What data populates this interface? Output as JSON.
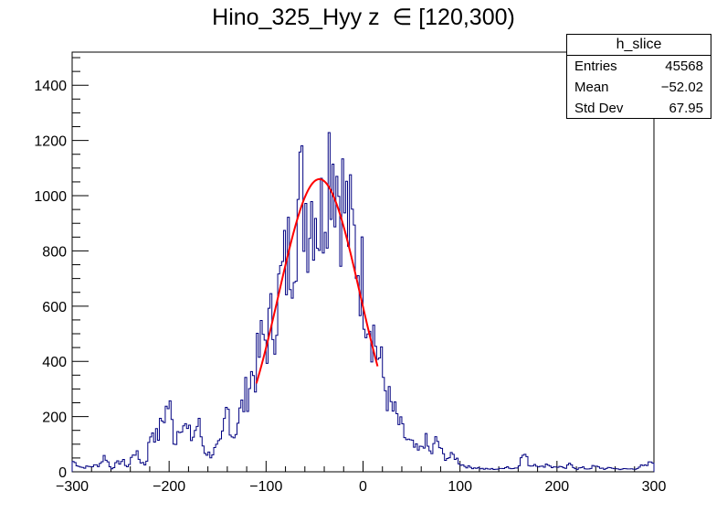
{
  "title": "Hino_325_Hyy z  ∈ [120,300)",
  "stats": {
    "name": "h_slice",
    "rows": [
      {
        "label": "Entries",
        "value": "45568"
      },
      {
        "label": "Mean",
        "value": "−52.02"
      },
      {
        "label": "Std Dev",
        "value": "67.95"
      }
    ]
  },
  "chart_data": {
    "type": "histogram",
    "x_range": [
      -300,
      300
    ],
    "y_range": [
      0,
      1520
    ],
    "bin_width": 2,
    "x_ticks": [
      -300,
      -200,
      -100,
      0,
      100,
      200,
      300
    ],
    "x_tick_labels": [
      "−300",
      "−200",
      "−100",
      "0",
      "100",
      "200",
      "300"
    ],
    "y_ticks": [
      0,
      200,
      400,
      600,
      800,
      1000,
      1200,
      1400
    ],
    "y_tick_labels": [
      "0",
      "200",
      "400",
      "600",
      "800",
      "1000",
      "1200",
      "1400"
    ],
    "histogram_color": "#000080",
    "fit_color": "#ff0000",
    "fit": {
      "function": "gaus",
      "amplitude": 1060,
      "mean": -45,
      "sigma": 42,
      "range": [
        -110,
        15
      ]
    },
    "bins": [
      [
        -300,
        40
      ],
      [
        -290,
        15
      ],
      [
        -280,
        20
      ],
      [
        -272,
        25
      ],
      [
        -266,
        60
      ],
      [
        -260,
        10
      ],
      [
        -254,
        30
      ],
      [
        -248,
        40
      ],
      [
        -242,
        15
      ],
      [
        -236,
        80
      ],
      [
        -230,
        40
      ],
      [
        -224,
        25
      ],
      [
        -218,
        160
      ],
      [
        -212,
        120
      ],
      [
        -206,
        200
      ],
      [
        -200,
        250
      ],
      [
        -194,
        100
      ],
      [
        -188,
        200
      ],
      [
        -182,
        150
      ],
      [
        -176,
        120
      ],
      [
        -170,
        180
      ],
      [
        -164,
        80
      ],
      [
        -158,
        60
      ],
      [
        -152,
        80
      ],
      [
        -146,
        100
      ],
      [
        -140,
        240
      ],
      [
        -134,
        120
      ],
      [
        -128,
        200
      ],
      [
        -122,
        260
      ],
      [
        -116,
        340
      ],
      [
        -110,
        380
      ],
      [
        -104,
        470
      ],
      [
        -98,
        500
      ],
      [
        -92,
        560
      ],
      [
        -86,
        660
      ],
      [
        -80,
        740
      ],
      [
        -74,
        820
      ],
      [
        -68,
        960
      ],
      [
        -62,
        1000
      ],
      [
        -56,
        950
      ],
      [
        -50,
        1020
      ],
      [
        -44,
        880
      ],
      [
        -38,
        1100
      ],
      [
        -32,
        1200
      ],
      [
        -26,
        1060
      ],
      [
        -20,
        980
      ],
      [
        -14,
        880
      ],
      [
        -8,
        820
      ],
      [
        -2,
        720
      ],
      [
        4,
        620
      ],
      [
        10,
        520
      ],
      [
        16,
        420
      ],
      [
        22,
        320
      ],
      [
        28,
        240
      ],
      [
        34,
        200
      ],
      [
        40,
        150
      ],
      [
        46,
        110
      ],
      [
        52,
        90
      ],
      [
        58,
        70
      ],
      [
        64,
        120
      ],
      [
        70,
        60
      ],
      [
        76,
        120
      ],
      [
        82,
        60
      ],
      [
        88,
        50
      ],
      [
        94,
        60
      ],
      [
        100,
        30
      ],
      [
        106,
        20
      ],
      [
        112,
        15
      ],
      [
        118,
        15
      ],
      [
        124,
        10
      ],
      [
        130,
        10
      ],
      [
        136,
        10
      ],
      [
        142,
        10
      ],
      [
        148,
        20
      ],
      [
        154,
        10
      ],
      [
        160,
        20
      ],
      [
        166,
        70
      ],
      [
        172,
        20
      ],
      [
        178,
        30
      ],
      [
        184,
        15
      ],
      [
        190,
        30
      ],
      [
        196,
        15
      ],
      [
        202,
        20
      ],
      [
        208,
        10
      ],
      [
        214,
        30
      ],
      [
        220,
        10
      ],
      [
        226,
        15
      ],
      [
        232,
        10
      ],
      [
        238,
        20
      ],
      [
        244,
        15
      ],
      [
        250,
        10
      ],
      [
        256,
        15
      ],
      [
        262,
        10
      ],
      [
        268,
        10
      ],
      [
        274,
        10
      ],
      [
        280,
        10
      ],
      [
        286,
        20
      ],
      [
        292,
        20
      ],
      [
        298,
        40
      ]
    ]
  }
}
